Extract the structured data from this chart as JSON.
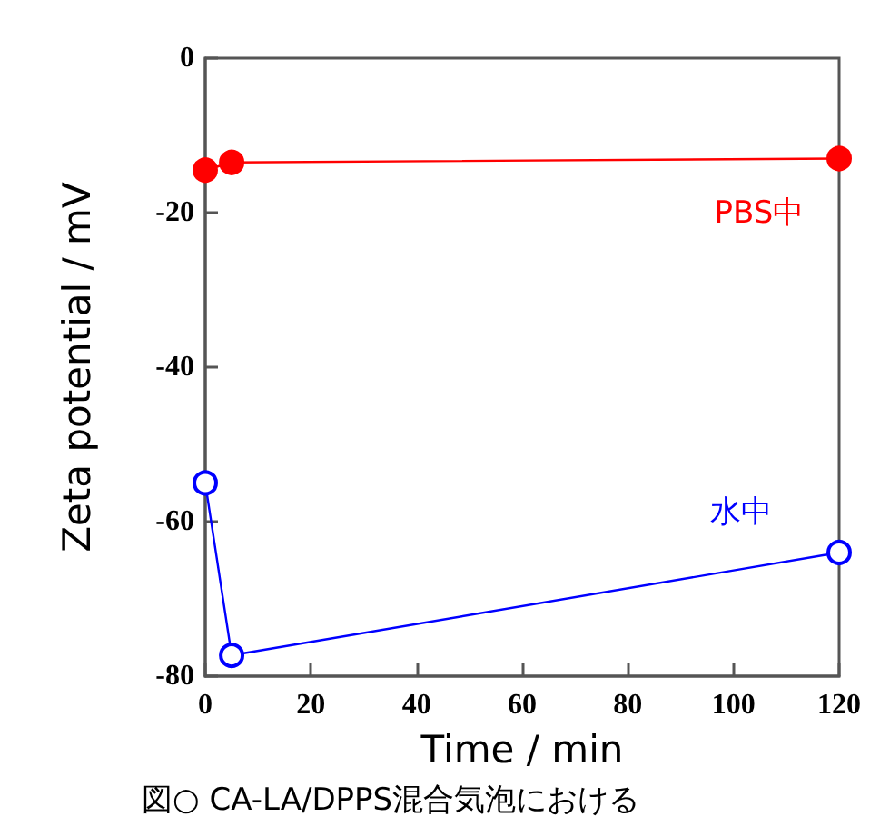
{
  "chart_data": {
    "type": "line",
    "xlabel": "Time / min",
    "ylabel": "Zeta potential / mV",
    "annotations": [
      "図○ CA-LA/DPPS混合気泡における"
    ],
    "x": [
      0,
      5,
      120
    ],
    "series": [
      {
        "name": "PBS中",
        "color": "#ff0000",
        "values": [
          -14.5,
          -13.5,
          -13
        ]
      },
      {
        "name": "水中",
        "color": "#0000ff",
        "values": [
          -55,
          -77.3,
          -64
        ]
      }
    ],
    "xlim": [
      0,
      120
    ],
    "xticks": [
      0,
      20,
      40,
      60,
      80,
      100,
      120
    ],
    "ylim": [
      -80,
      0
    ],
    "yticks": [
      -80,
      -60,
      -40,
      -20,
      0
    ],
    "grid": false,
    "legend": false,
    "marker": "circle",
    "line_style": "solid"
  }
}
